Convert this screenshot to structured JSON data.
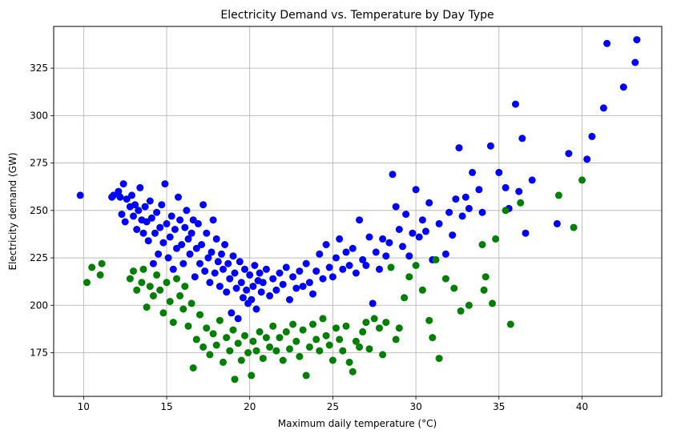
{
  "chart_data": {
    "type": "scatter",
    "title": "Electricity Demand vs. Temperature by Day Type",
    "xlabel": "Maximum daily temperature (°C)",
    "ylabel": "Electricity demand (GW)",
    "xlim": [
      8.2,
      44.8
    ],
    "ylim": [
      152,
      347
    ],
    "xticks": [
      10,
      15,
      20,
      25,
      30,
      35,
      40
    ],
    "yticks": [
      175,
      200,
      225,
      250,
      275,
      300,
      325
    ],
    "grid": true,
    "series": [
      {
        "color": "#0000ff",
        "points": [
          [
            9.8,
            258
          ],
          [
            11.7,
            257
          ],
          [
            11.8,
            258
          ],
          [
            12.1,
            260
          ],
          [
            12.2,
            257
          ],
          [
            12.4,
            264
          ],
          [
            12.3,
            248
          ],
          [
            12.5,
            244
          ],
          [
            12.6,
            256
          ],
          [
            12.8,
            252
          ],
          [
            12.9,
            258
          ],
          [
            13.0,
            247
          ],
          [
            13.1,
            253
          ],
          [
            13.2,
            240
          ],
          [
            13.3,
            250
          ],
          [
            13.4,
            262
          ],
          [
            13.5,
            245
          ],
          [
            13.6,
            238
          ],
          [
            13.7,
            252
          ],
          [
            13.8,
            244
          ],
          [
            13.9,
            234
          ],
          [
            14.0,
            255
          ],
          [
            14.1,
            246
          ],
          [
            14.2,
            222
          ],
          [
            14.3,
            238
          ],
          [
            14.4,
            249
          ],
          [
            14.5,
            227
          ],
          [
            14.6,
            241
          ],
          [
            14.7,
            253
          ],
          [
            14.8,
            233
          ],
          [
            14.9,
            264
          ],
          [
            15.0,
            243
          ],
          [
            15.1,
            225
          ],
          [
            15.2,
            236
          ],
          [
            15.3,
            247
          ],
          [
            15.4,
            219
          ],
          [
            15.5,
            240
          ],
          [
            15.6,
            230
          ],
          [
            15.7,
            257
          ],
          [
            15.8,
            245
          ],
          [
            15.9,
            232
          ],
          [
            16.0,
            222
          ],
          [
            16.1,
            241
          ],
          [
            16.2,
            250
          ],
          [
            16.3,
            235
          ],
          [
            16.4,
            227
          ],
          [
            16.5,
            238
          ],
          [
            16.6,
            245
          ],
          [
            16.7,
            215
          ],
          [
            16.8,
            230
          ],
          [
            16.9,
            243
          ],
          [
            17.0,
            222
          ],
          [
            17.1,
            232
          ],
          [
            17.2,
            253
          ],
          [
            17.3,
            218
          ],
          [
            17.4,
            238
          ],
          [
            17.5,
            225
          ],
          [
            17.6,
            212
          ],
          [
            17.7,
            228
          ],
          [
            17.8,
            245
          ],
          [
            17.9,
            217
          ],
          [
            18.0,
            235
          ],
          [
            18.1,
            223
          ],
          [
            18.2,
            210
          ],
          [
            18.3,
            227
          ],
          [
            18.4,
            219
          ],
          [
            18.5,
            232
          ],
          [
            18.6,
            207
          ],
          [
            18.7,
            222
          ],
          [
            18.8,
            214
          ],
          [
            18.9,
            196
          ],
          [
            19.0,
            226
          ],
          [
            19.1,
            217
          ],
          [
            19.2,
            209
          ],
          [
            19.3,
            193
          ],
          [
            19.4,
            223
          ],
          [
            19.5,
            212
          ],
          [
            19.6,
            204
          ],
          [
            19.7,
            219
          ],
          [
            19.8,
            208
          ],
          [
            19.9,
            201
          ],
          [
            20.0,
            216
          ],
          [
            20.1,
            203
          ],
          [
            20.2,
            210
          ],
          [
            20.3,
            221
          ],
          [
            20.4,
            198
          ],
          [
            20.5,
            213
          ],
          [
            20.6,
            217
          ],
          [
            20.7,
            207
          ],
          [
            20.8,
            212
          ],
          [
            21.0,
            219
          ],
          [
            21.2,
            205
          ],
          [
            21.4,
            214
          ],
          [
            21.6,
            208
          ],
          [
            21.8,
            217
          ],
          [
            22.0,
            211
          ],
          [
            22.2,
            220
          ],
          [
            22.4,
            203
          ],
          [
            22.6,
            215
          ],
          [
            22.8,
            209
          ],
          [
            23.0,
            218
          ],
          [
            23.2,
            210
          ],
          [
            23.4,
            222
          ],
          [
            23.6,
            212
          ],
          [
            23.8,
            206
          ],
          [
            24.0,
            218
          ],
          [
            24.2,
            227
          ],
          [
            24.4,
            214
          ],
          [
            24.6,
            232
          ],
          [
            24.8,
            220
          ],
          [
            25.0,
            215
          ],
          [
            25.2,
            225
          ],
          [
            25.4,
            235
          ],
          [
            25.6,
            219
          ],
          [
            25.8,
            228
          ],
          [
            26.0,
            221
          ],
          [
            26.2,
            230
          ],
          [
            26.4,
            217
          ],
          [
            26.6,
            245
          ],
          [
            26.8,
            224
          ],
          [
            27.0,
            221
          ],
          [
            27.2,
            236
          ],
          [
            27.4,
            201
          ],
          [
            27.6,
            228
          ],
          [
            27.8,
            219
          ],
          [
            28.0,
            235
          ],
          [
            28.2,
            226
          ],
          [
            28.4,
            233
          ],
          [
            28.6,
            269
          ],
          [
            28.8,
            252
          ],
          [
            29.0,
            240
          ],
          [
            29.2,
            231
          ],
          [
            29.4,
            248
          ],
          [
            29.6,
            226
          ],
          [
            29.8,
            238
          ],
          [
            30.0,
            261
          ],
          [
            30.2,
            236
          ],
          [
            30.4,
            245
          ],
          [
            30.6,
            239
          ],
          [
            30.8,
            254
          ],
          [
            31.0,
            224
          ],
          [
            31.4,
            243
          ],
          [
            31.8,
            227
          ],
          [
            32.0,
            249
          ],
          [
            32.2,
            237
          ],
          [
            32.4,
            256
          ],
          [
            32.6,
            283
          ],
          [
            32.8,
            247
          ],
          [
            33.0,
            257
          ],
          [
            33.2,
            251
          ],
          [
            33.4,
            270
          ],
          [
            33.8,
            261
          ],
          [
            34.0,
            249
          ],
          [
            34.5,
            284
          ],
          [
            35.0,
            270
          ],
          [
            35.4,
            262
          ],
          [
            35.6,
            251
          ],
          [
            36.0,
            306
          ],
          [
            36.2,
            260
          ],
          [
            36.4,
            288
          ],
          [
            36.6,
            238
          ],
          [
            37.0,
            266
          ],
          [
            38.5,
            243
          ],
          [
            39.2,
            280
          ],
          [
            40.3,
            277
          ],
          [
            40.6,
            289
          ],
          [
            41.3,
            304
          ],
          [
            41.5,
            338
          ],
          [
            42.5,
            315
          ],
          [
            43.2,
            328
          ],
          [
            43.3,
            340
          ]
        ]
      },
      {
        "color": "#008000",
        "points": [
          [
            10.2,
            212
          ],
          [
            10.5,
            220
          ],
          [
            11.0,
            216
          ],
          [
            11.1,
            222
          ],
          [
            12.8,
            214
          ],
          [
            13.0,
            218
          ],
          [
            13.2,
            208
          ],
          [
            13.5,
            212
          ],
          [
            13.6,
            219
          ],
          [
            13.8,
            199
          ],
          [
            14.0,
            210
          ],
          [
            14.2,
            205
          ],
          [
            14.4,
            216
          ],
          [
            14.6,
            208
          ],
          [
            14.8,
            196
          ],
          [
            15.0,
            212
          ],
          [
            15.2,
            202
          ],
          [
            15.4,
            191
          ],
          [
            15.6,
            214
          ],
          [
            15.8,
            205
          ],
          [
            16.0,
            198
          ],
          [
            16.1,
            210
          ],
          [
            16.3,
            189
          ],
          [
            16.5,
            201
          ],
          [
            16.6,
            167
          ],
          [
            16.8,
            182
          ],
          [
            17.0,
            195
          ],
          [
            17.2,
            178
          ],
          [
            17.4,
            188
          ],
          [
            17.6,
            174
          ],
          [
            17.8,
            185
          ],
          [
            18.0,
            179
          ],
          [
            18.2,
            192
          ],
          [
            18.4,
            170
          ],
          [
            18.6,
            183
          ],
          [
            18.8,
            176
          ],
          [
            19.0,
            187
          ],
          [
            19.1,
            161
          ],
          [
            19.3,
            180
          ],
          [
            19.5,
            171
          ],
          [
            19.7,
            184
          ],
          [
            19.9,
            175
          ],
          [
            20.1,
            163
          ],
          [
            20.2,
            181
          ],
          [
            20.4,
            176
          ],
          [
            20.6,
            186
          ],
          [
            20.8,
            172
          ],
          [
            21.0,
            183
          ],
          [
            21.2,
            178
          ],
          [
            21.4,
            189
          ],
          [
            21.6,
            176
          ],
          [
            21.8,
            183
          ],
          [
            22.0,
            171
          ],
          [
            22.2,
            186
          ],
          [
            22.4,
            177
          ],
          [
            22.6,
            190
          ],
          [
            22.8,
            181
          ],
          [
            23.0,
            173
          ],
          [
            23.2,
            187
          ],
          [
            23.4,
            163
          ],
          [
            23.6,
            178
          ],
          [
            23.8,
            190
          ],
          [
            24.0,
            182
          ],
          [
            24.2,
            176
          ],
          [
            24.4,
            193
          ],
          [
            24.6,
            184
          ],
          [
            24.8,
            179
          ],
          [
            25.0,
            171
          ],
          [
            25.2,
            188
          ],
          [
            25.4,
            182
          ],
          [
            25.6,
            176
          ],
          [
            25.8,
            189
          ],
          [
            26.0,
            170
          ],
          [
            26.2,
            165
          ],
          [
            26.4,
            181
          ],
          [
            26.6,
            178
          ],
          [
            26.8,
            186
          ],
          [
            27.0,
            191
          ],
          [
            27.2,
            177
          ],
          [
            27.5,
            193
          ],
          [
            27.8,
            188
          ],
          [
            28.0,
            174
          ],
          [
            28.2,
            191
          ],
          [
            28.5,
            220
          ],
          [
            28.8,
            182
          ],
          [
            29.0,
            188
          ],
          [
            29.3,
            204
          ],
          [
            29.6,
            215
          ],
          [
            30.0,
            221
          ],
          [
            30.4,
            208
          ],
          [
            30.8,
            192
          ],
          [
            31.0,
            183
          ],
          [
            31.2,
            224
          ],
          [
            31.4,
            172
          ],
          [
            31.8,
            214
          ],
          [
            32.3,
            209
          ],
          [
            32.7,
            197
          ],
          [
            33.2,
            200
          ],
          [
            34.0,
            232
          ],
          [
            34.1,
            208
          ],
          [
            34.2,
            215
          ],
          [
            34.6,
            201
          ],
          [
            34.8,
            235
          ],
          [
            35.4,
            250
          ],
          [
            35.7,
            190
          ],
          [
            36.3,
            254
          ],
          [
            38.6,
            258
          ],
          [
            39.5,
            241
          ],
          [
            40.0,
            266
          ]
        ]
      }
    ]
  }
}
